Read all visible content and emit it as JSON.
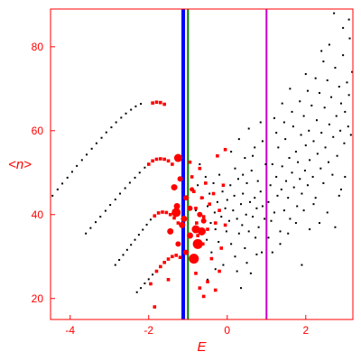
{
  "chart_data": {
    "type": "scatter",
    "xlabel": "E",
    "ylabel": "<n>",
    "xlim": [
      -4.5,
      3.2
    ],
    "ylim": [
      15,
      89
    ],
    "xticks": [
      -4,
      -2,
      0,
      2
    ],
    "yticks": [
      20,
      40,
      60,
      80
    ],
    "grid": false,
    "colors": {
      "axes": "#ff0000",
      "data_black": "#000000",
      "data_red": "#ff0000",
      "line_blue": "#0000ff",
      "line_green": "#008000",
      "line_magenta": "#cc00cc"
    },
    "vertical_lines": [
      {
        "x": -1.12,
        "color": "#0000ff",
        "width": 4
      },
      {
        "x": -1.0,
        "color": "#008000",
        "width": 2
      },
      {
        "x": 1.0,
        "color": "#cc00cc",
        "width": 2
      }
    ],
    "series": [
      {
        "color": "#000000",
        "marker": "dot",
        "values": [
          [
            -4.45,
            44.5
          ],
          [
            -4.32,
            46.0
          ],
          [
            -4.2,
            47.4
          ],
          [
            -4.07,
            48.8
          ],
          [
            -3.95,
            50.2
          ],
          [
            -3.83,
            51.6
          ],
          [
            -3.7,
            53.0
          ],
          [
            -3.58,
            54.3
          ],
          [
            -3.45,
            55.7
          ],
          [
            -3.33,
            57.0
          ],
          [
            -3.2,
            58.3
          ],
          [
            -3.08,
            59.6
          ],
          [
            -2.95,
            60.8
          ],
          [
            -2.83,
            62.0
          ],
          [
            -2.7,
            63.1
          ],
          [
            -2.58,
            64.1
          ],
          [
            -2.45,
            65.0
          ],
          [
            -2.33,
            65.8
          ],
          [
            -2.2,
            66.4
          ],
          [
            -3.6,
            35.5
          ],
          [
            -3.48,
            36.8
          ],
          [
            -3.35,
            38.2
          ],
          [
            -3.23,
            39.5
          ],
          [
            -3.1,
            40.9
          ],
          [
            -2.98,
            42.3
          ],
          [
            -2.85,
            43.6
          ],
          [
            -2.73,
            45.0
          ],
          [
            -2.6,
            46.3
          ],
          [
            -2.48,
            47.6
          ],
          [
            -2.35,
            48.8
          ],
          [
            -2.23,
            50.0
          ],
          [
            -2.1,
            51.2
          ],
          [
            -2.85,
            28.0
          ],
          [
            -2.75,
            29.2
          ],
          [
            -2.65,
            30.4
          ],
          [
            -2.55,
            31.6
          ],
          [
            -2.45,
            32.8
          ],
          [
            -2.35,
            34.0
          ],
          [
            -2.25,
            35.2
          ],
          [
            -2.15,
            36.4
          ],
          [
            -2.05,
            37.6
          ],
          [
            -1.95,
            38.8
          ],
          [
            -2.3,
            21.5
          ],
          [
            -2.2,
            22.5
          ],
          [
            -2.1,
            23.6
          ],
          [
            -2.0,
            24.6
          ],
          [
            -1.9,
            25.7
          ],
          [
            -0.8,
            41.0
          ],
          [
            -0.75,
            47.0
          ],
          [
            -0.7,
            52.0
          ],
          [
            -0.65,
            36.0
          ],
          [
            -0.62,
            44.0
          ],
          [
            -0.6,
            39.0
          ],
          [
            -0.55,
            49.0
          ],
          [
            -0.52,
            34.0
          ],
          [
            -0.5,
            42.0
          ],
          [
            -0.45,
            45.0
          ],
          [
            -0.42,
            38.0
          ],
          [
            -0.4,
            31.0
          ],
          [
            -0.35,
            47.5
          ],
          [
            -0.32,
            40.5
          ],
          [
            -0.3,
            36.5
          ],
          [
            -0.25,
            43.0
          ],
          [
            -0.22,
            33.5
          ],
          [
            -0.2,
            49.5
          ],
          [
            -0.15,
            39.5
          ],
          [
            -0.12,
            45.5
          ],
          [
            -0.1,
            28.0
          ],
          [
            -0.05,
            41.5
          ],
          [
            -0.02,
            36.0
          ],
          [
            0.0,
            43.5
          ],
          [
            0.05,
            38.5
          ],
          [
            0.08,
            47.0
          ],
          [
            0.1,
            33.0
          ],
          [
            0.15,
            41.0
          ],
          [
            0.18,
            44.5
          ],
          [
            0.2,
            30.0
          ],
          [
            0.25,
            39.0
          ],
          [
            0.28,
            48.5
          ],
          [
            0.3,
            35.5
          ],
          [
            0.35,
            42.5
          ],
          [
            0.38,
            37.5
          ],
          [
            0.4,
            45.0
          ],
          [
            0.45,
            32.0
          ],
          [
            0.48,
            40.0
          ],
          [
            0.5,
            47.5
          ],
          [
            0.55,
            36.0
          ],
          [
            0.58,
            43.0
          ],
          [
            0.6,
            26.0
          ],
          [
            0.62,
            50.5
          ],
          [
            0.65,
            39.5
          ],
          [
            0.7,
            44.0
          ],
          [
            0.72,
            34.5
          ],
          [
            0.75,
            41.5
          ],
          [
            0.78,
            48.0
          ],
          [
            0.8,
            37.0
          ],
          [
            0.85,
            45.5
          ],
          [
            0.88,
            31.0
          ],
          [
            0.9,
            42.0
          ],
          [
            0.95,
            39.0
          ],
          [
            0.98,
            52.0
          ],
          [
            0.1,
            55.0
          ],
          [
            0.3,
            58.0
          ],
          [
            0.45,
            53.5
          ],
          [
            0.55,
            60.5
          ],
          [
            0.7,
            56.0
          ],
          [
            0.85,
            62.0
          ],
          [
            0.2,
            51.0
          ],
          [
            0.4,
            49.5
          ],
          [
            0.65,
            54.0
          ],
          [
            0.9,
            57.5
          ],
          [
            0.25,
            26.5
          ],
          [
            0.5,
            28.5
          ],
          [
            0.75,
            30.5
          ],
          [
            0.35,
            22.5
          ],
          [
            -0.3,
            27.0
          ],
          [
            -0.5,
            24.5
          ],
          [
            1.05,
            43.0
          ],
          [
            1.1,
            47.0
          ],
          [
            1.12,
            38.5
          ],
          [
            1.15,
            52.0
          ],
          [
            1.2,
            40.5
          ],
          [
            1.25,
            49.0
          ],
          [
            1.28,
            44.5
          ],
          [
            1.3,
            56.0
          ],
          [
            1.35,
            36.0
          ],
          [
            1.38,
            46.0
          ],
          [
            1.4,
            51.5
          ],
          [
            1.45,
            41.0
          ],
          [
            1.48,
            58.0
          ],
          [
            1.5,
            48.0
          ],
          [
            1.55,
            44.0
          ],
          [
            1.58,
            53.5
          ],
          [
            1.6,
            39.0
          ],
          [
            1.65,
            50.0
          ],
          [
            1.68,
            61.0
          ],
          [
            1.7,
            46.5
          ],
          [
            1.75,
            55.0
          ],
          [
            1.78,
            42.0
          ],
          [
            1.8,
            52.5
          ],
          [
            1.85,
            48.5
          ],
          [
            1.88,
            59.0
          ],
          [
            1.9,
            45.0
          ],
          [
            1.95,
            63.5
          ],
          [
            1.98,
            50.5
          ],
          [
            2.0,
            56.5
          ],
          [
            2.05,
            47.0
          ],
          [
            2.08,
            60.0
          ],
          [
            2.1,
            53.0
          ],
          [
            2.15,
            66.0
          ],
          [
            2.18,
            49.0
          ],
          [
            2.2,
            57.5
          ],
          [
            2.25,
            44.0
          ],
          [
            2.28,
            62.5
          ],
          [
            2.3,
            54.5
          ],
          [
            2.35,
            69.0
          ],
          [
            2.38,
            51.0
          ],
          [
            2.4,
            59.5
          ],
          [
            2.45,
            47.5
          ],
          [
            2.48,
            65.5
          ],
          [
            2.5,
            56.0
          ],
          [
            2.55,
            72.0
          ],
          [
            2.58,
            52.5
          ],
          [
            2.6,
            61.5
          ],
          [
            2.65,
            68.0
          ],
          [
            2.68,
            49.5
          ],
          [
            2.7,
            58.5
          ],
          [
            2.75,
            75.0
          ],
          [
            2.78,
            63.5
          ],
          [
            2.8,
            54.0
          ],
          [
            2.85,
            70.5
          ],
          [
            2.88,
            60.0
          ],
          [
            2.9,
            66.5
          ],
          [
            2.95,
            78.0
          ],
          [
            2.98,
            57.0
          ],
          [
            3.0,
            64.5
          ],
          [
            3.05,
            71.5
          ],
          [
            3.08,
            61.0
          ],
          [
            3.1,
            68.5
          ],
          [
            3.12,
            82.0
          ],
          [
            3.15,
            59.0
          ],
          [
            3.18,
            74.0
          ],
          [
            2.72,
            88.0
          ],
          [
            2.95,
            84.5
          ],
          [
            2.45,
            76.5
          ],
          [
            2.25,
            72.5
          ],
          [
            2.05,
            69.5
          ],
          [
            1.85,
            67.0
          ],
          [
            1.65,
            64.5
          ],
          [
            1.45,
            62.0
          ],
          [
            1.25,
            59.5
          ],
          [
            2.6,
            80.5
          ],
          [
            3.1,
            86.5
          ],
          [
            2.85,
            44.5
          ],
          [
            2.55,
            40.5
          ],
          [
            2.75,
            37.0
          ],
          [
            2.35,
            38.0
          ],
          [
            1.95,
            41.0
          ],
          [
            1.55,
            35.5
          ],
          [
            1.35,
            33.0
          ],
          [
            1.15,
            31.0
          ],
          [
            2.1,
            36.5
          ],
          [
            3.0,
            49.0
          ],
          [
            2.9,
            46.0
          ],
          [
            1.75,
            38.0
          ],
          [
            2.2,
            42.5
          ],
          [
            1.05,
            34.5
          ],
          [
            1.2,
            63.0
          ],
          [
            1.4,
            66.5
          ],
          [
            1.6,
            70.0
          ],
          [
            2.0,
            73.5
          ],
          [
            2.4,
            79.0
          ],
          [
            1.9,
            28.0
          ]
        ]
      },
      {
        "color": "#ff0000",
        "marker": "square",
        "values": [
          [
            -1.9,
            66.6
          ],
          [
            -1.8,
            66.8
          ],
          [
            -1.7,
            66.7
          ],
          [
            -1.6,
            66.3
          ],
          [
            -2.0,
            52.0
          ],
          [
            -1.9,
            52.8
          ],
          [
            -1.8,
            53.2
          ],
          [
            -1.7,
            53.3
          ],
          [
            -1.6,
            53.2
          ],
          [
            -1.5,
            52.8
          ],
          [
            -1.4,
            52.0
          ],
          [
            -1.85,
            39.7
          ],
          [
            -1.75,
            40.4
          ],
          [
            -1.65,
            40.6
          ],
          [
            -1.55,
            40.5
          ],
          [
            -1.45,
            40.0
          ],
          [
            -1.35,
            39.2
          ],
          [
            -1.25,
            38.0
          ],
          [
            -1.8,
            26.5
          ],
          [
            -1.7,
            27.6
          ],
          [
            -1.6,
            28.6
          ],
          [
            -1.5,
            29.4
          ],
          [
            -1.4,
            30.0
          ],
          [
            -1.3,
            30.3
          ],
          [
            -1.2,
            29.8
          ],
          [
            -1.95,
            23.5
          ],
          [
            -1.85,
            18.0
          ],
          [
            -1.5,
            24.5
          ],
          [
            -0.95,
            52.5
          ],
          [
            -0.9,
            49.0
          ],
          [
            -0.85,
            45.5
          ],
          [
            -0.8,
            41.5
          ],
          [
            -0.78,
            38.0
          ],
          [
            -0.75,
            35.0
          ],
          [
            -0.7,
            51.0
          ],
          [
            -0.65,
            44.0
          ],
          [
            -0.62,
            33.0
          ],
          [
            -0.6,
            39.5
          ],
          [
            -0.55,
            47.5
          ],
          [
            -0.5,
            36.5
          ],
          [
            -0.45,
            42.5
          ],
          [
            -0.4,
            29.5
          ],
          [
            -0.35,
            45.0
          ],
          [
            -0.3,
            38.0
          ],
          [
            -0.25,
            54.0
          ],
          [
            -0.2,
            41.0
          ],
          [
            -0.15,
            32.0
          ],
          [
            -0.1,
            47.0
          ],
          [
            -0.05,
            37.5
          ],
          [
            -0.9,
            29.0
          ],
          [
            -0.8,
            26.0
          ],
          [
            -0.7,
            22.5
          ],
          [
            -0.6,
            20.5
          ],
          [
            -0.5,
            24.0
          ],
          [
            -0.3,
            22.0
          ],
          [
            -0.2,
            26.5
          ],
          [
            -0.05,
            55.5
          ]
        ]
      },
      {
        "color": "#ff0000",
        "marker": "circle",
        "values": [
          [
            -1.25,
            53.5,
            4.5
          ],
          [
            -1.35,
            46.5,
            3.5
          ],
          [
            -1.28,
            42.0,
            3.5
          ],
          [
            -1.45,
            36.0,
            3.5
          ],
          [
            -1.25,
            33.0,
            3.0
          ],
          [
            -1.3,
            40.5,
            5.0
          ],
          [
            -1.15,
            37.5,
            3.5
          ],
          [
            -1.05,
            44.0,
            3.0
          ],
          [
            -0.95,
            35.0,
            3.5
          ],
          [
            -0.8,
            36.5,
            4.5
          ],
          [
            -0.85,
            29.5,
            5.5
          ],
          [
            -0.75,
            33.0,
            5.5
          ],
          [
            -0.65,
            36.0,
            4.5
          ],
          [
            -1.1,
            39.0,
            3.5
          ],
          [
            -0.95,
            41.5,
            3.0
          ],
          [
            -1.05,
            31.0,
            3.0
          ],
          [
            -0.7,
            40.0,
            3.0
          ],
          [
            -1.2,
            48.5,
            3.0
          ],
          [
            -0.9,
            46.0,
            2.5
          ],
          [
            -0.6,
            38.5,
            3.0
          ]
        ]
      }
    ]
  }
}
